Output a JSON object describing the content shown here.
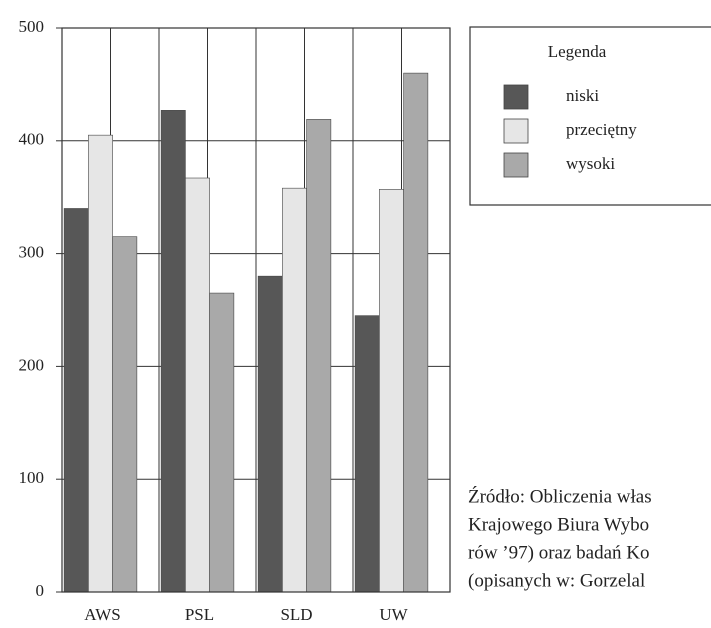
{
  "chart_data": {
    "type": "bar",
    "categories": [
      "AWS",
      "PSL",
      "SLD",
      "UW"
    ],
    "series": [
      {
        "name": "niski",
        "color": "#575757",
        "values": [
          340,
          427,
          280,
          245
        ]
      },
      {
        "name": "przeciętny",
        "color": "#e6e6e6",
        "values": [
          405,
          367,
          358,
          357
        ]
      },
      {
        "name": "wysoki",
        "color": "#a9a9a9",
        "values": [
          315,
          265,
          419,
          460
        ]
      }
    ],
    "ylim": [
      0,
      500
    ],
    "yticks": [
      0,
      100,
      200,
      300,
      400,
      500
    ],
    "grid": true,
    "legend_title": "Legenda",
    "legend": "upper right",
    "source": [
      "Źródło: Obliczenia włas",
      "Krajowego Biura Wybo",
      "rów ’97) oraz badań Ko",
      "(opisanych w: Gorzelal"
    ]
  }
}
